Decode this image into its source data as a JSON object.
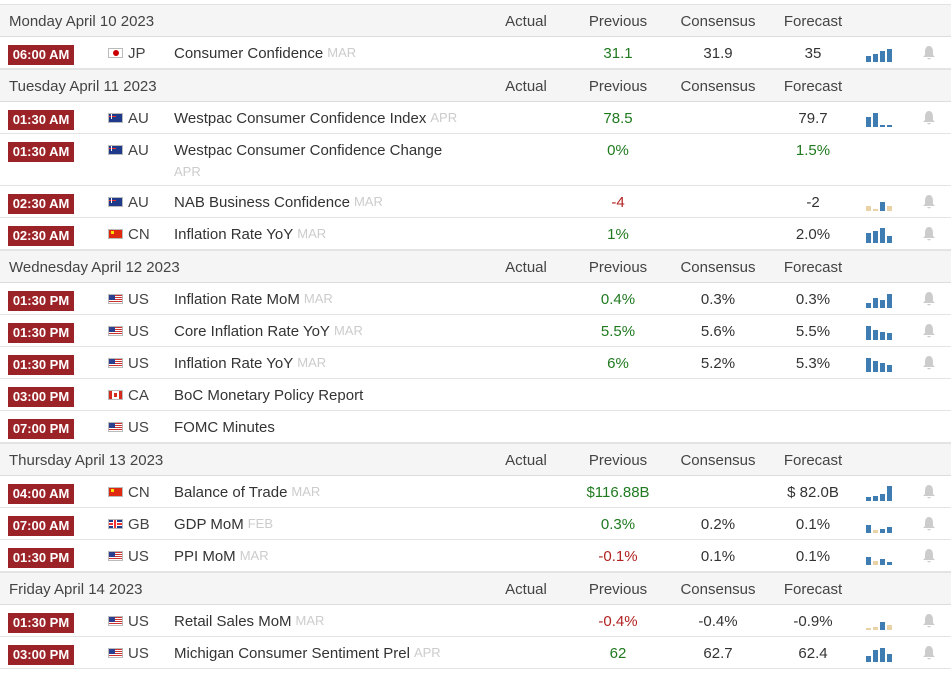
{
  "columns": {
    "actual": "Actual",
    "previous": "Previous",
    "consensus": "Consensus",
    "forecast": "Forecast"
  },
  "colors": {
    "time_badge": "#9b2226",
    "positive": "#1f7a1f",
    "negative": "#b22222",
    "spark_blue": "#3e7cb1",
    "spark_tan": "#e8d2a6"
  },
  "days": [
    {
      "date": "Monday April 10 2023",
      "events": [
        {
          "time": "06:00 AM",
          "flag": "jp",
          "country": "JP",
          "event": "Consumer Confidence",
          "ref": "MAR",
          "actual": "",
          "previous": "31.1",
          "previous_color": "green",
          "consensus": "31.9",
          "forecast": "35",
          "spark": [
            [
              "b",
              0.35
            ],
            [
              "b",
              0.5
            ],
            [
              "b",
              0.7
            ],
            [
              "b",
              0.8
            ]
          ]
        }
      ]
    },
    {
      "date": "Tuesday April 11 2023",
      "events": [
        {
          "time": "01:30 AM",
          "flag": "au",
          "country": "AU",
          "event": "Westpac Consumer Confidence Index",
          "ref": "APR",
          "actual": "",
          "previous": "78.5",
          "previous_color": "green",
          "consensus": "",
          "forecast": "79.7",
          "spark": [
            [
              "b",
              0.6
            ],
            [
              "b",
              0.85
            ],
            [
              "b",
              0.15
            ],
            [
              "b",
              0.1
            ]
          ]
        },
        {
          "time": "01:30 AM",
          "flag": "au",
          "country": "AU",
          "event": "Westpac Consumer Confidence Change",
          "ref": "APR",
          "ref_wrap": true,
          "actual": "",
          "previous": "0%",
          "previous_color": "green",
          "consensus": "",
          "forecast": "1.5%",
          "forecast_color": "green",
          "spark": []
        },
        {
          "time": "02:30 AM",
          "flag": "au",
          "country": "AU",
          "event": "NAB Business Confidence",
          "ref": "MAR",
          "actual": "",
          "previous": "-4",
          "previous_color": "red",
          "consensus": "",
          "forecast": "-2",
          "spark": [
            [
              "t",
              0.3
            ],
            [
              "t",
              0.1
            ],
            [
              "b",
              0.55
            ],
            [
              "t",
              0.3
            ]
          ]
        },
        {
          "time": "02:30 AM",
          "flag": "cn",
          "country": "CN",
          "event": "Inflation Rate YoY",
          "ref": "MAR",
          "actual": "",
          "previous": "1%",
          "previous_color": "green",
          "consensus": "",
          "forecast": "2.0%",
          "spark": [
            [
              "b",
              0.65
            ],
            [
              "b",
              0.75
            ],
            [
              "b",
              0.95
            ],
            [
              "b",
              0.45
            ]
          ]
        }
      ]
    },
    {
      "date": "Wednesday April 12 2023",
      "events": [
        {
          "time": "01:30 PM",
          "flag": "us",
          "country": "US",
          "event": "Inflation Rate MoM",
          "ref": "MAR",
          "actual": "",
          "previous": "0.4%",
          "previous_color": "green",
          "consensus": "0.3%",
          "forecast": "0.3%",
          "spark": [
            [
              "b",
              0.3
            ],
            [
              "b",
              0.6
            ],
            [
              "b",
              0.5
            ],
            [
              "b",
              0.9
            ]
          ]
        },
        {
          "time": "01:30 PM",
          "flag": "us",
          "country": "US",
          "event": "Core Inflation Rate YoY",
          "ref": "MAR",
          "actual": "",
          "previous": "5.5%",
          "previous_color": "green",
          "consensus": "5.6%",
          "forecast": "5.5%",
          "spark": [
            [
              "b",
              0.9
            ],
            [
              "b",
              0.6
            ],
            [
              "b",
              0.5
            ],
            [
              "b",
              0.45
            ]
          ]
        },
        {
          "time": "01:30 PM",
          "flag": "us",
          "country": "US",
          "event": "Inflation Rate YoY",
          "ref": "MAR",
          "actual": "",
          "previous": "6%",
          "previous_color": "green",
          "consensus": "5.2%",
          "forecast": "5.3%",
          "spark": [
            [
              "b",
              0.9
            ],
            [
              "b",
              0.7
            ],
            [
              "b",
              0.55
            ],
            [
              "b",
              0.45
            ]
          ]
        },
        {
          "time": "03:00 PM",
          "flag": "ca",
          "country": "CA",
          "event": "BoC Monetary Policy Report",
          "ref": "",
          "actual": "",
          "previous": "",
          "consensus": "",
          "forecast": "",
          "spark": []
        },
        {
          "time": "07:00 PM",
          "flag": "us",
          "country": "US",
          "event": "FOMC Minutes",
          "ref": "",
          "actual": "",
          "previous": "",
          "consensus": "",
          "forecast": "",
          "spark": []
        }
      ]
    },
    {
      "date": "Thursday April 13 2023",
      "events": [
        {
          "time": "04:00 AM",
          "flag": "cn",
          "country": "CN",
          "event": "Balance of Trade",
          "ref": "MAR",
          "actual": "",
          "previous": "$116.88B",
          "previous_color": "green",
          "consensus": "",
          "forecast": "$ 82.0B",
          "spark": [
            [
              "b",
              0.25
            ],
            [
              "b",
              0.3
            ],
            [
              "b",
              0.45
            ],
            [
              "b",
              0.95
            ]
          ]
        },
        {
          "time": "07:00 AM",
          "flag": "gb",
          "country": "GB",
          "event": "GDP MoM",
          "ref": "FEB",
          "actual": "",
          "previous": "0.3%",
          "previous_color": "green",
          "consensus": "0.2%",
          "forecast": "0.1%",
          "spark": [
            [
              "b",
              0.5
            ],
            [
              "t",
              0.2
            ],
            [
              "b",
              0.25
            ],
            [
              "b",
              0.35
            ]
          ]
        },
        {
          "time": "01:30 PM",
          "flag": "us",
          "country": "US",
          "event": "PPI MoM",
          "ref": "MAR",
          "actual": "",
          "previous": "-0.1%",
          "previous_color": "red",
          "consensus": "0.1%",
          "forecast": "0.1%",
          "spark": [
            [
              "b",
              0.5
            ],
            [
              "t",
              0.25
            ],
            [
              "b",
              0.35
            ],
            [
              "b",
              0.2
            ]
          ]
        }
      ]
    },
    {
      "date": "Friday April 14 2023",
      "events": [
        {
          "time": "01:30 PM",
          "flag": "us",
          "country": "US",
          "event": "Retail Sales MoM",
          "ref": "MAR",
          "actual": "",
          "previous": "-0.4%",
          "previous_color": "red",
          "consensus": "-0.4%",
          "forecast": "-0.9%",
          "spark": [
            [
              "t",
              0.15
            ],
            [
              "t",
              0.2
            ],
            [
              "b",
              0.5
            ],
            [
              "t",
              0.3
            ]
          ]
        },
        {
          "time": "03:00 PM",
          "flag": "us",
          "country": "US",
          "event": "Michigan Consumer Sentiment Prel",
          "ref": "APR",
          "actual": "",
          "previous": "62",
          "previous_color": "green",
          "consensus": "62.7",
          "forecast": "62.4",
          "spark": [
            [
              "b",
              0.35
            ],
            [
              "b",
              0.75
            ],
            [
              "b",
              0.85
            ],
            [
              "b",
              0.5
            ]
          ]
        }
      ]
    }
  ]
}
